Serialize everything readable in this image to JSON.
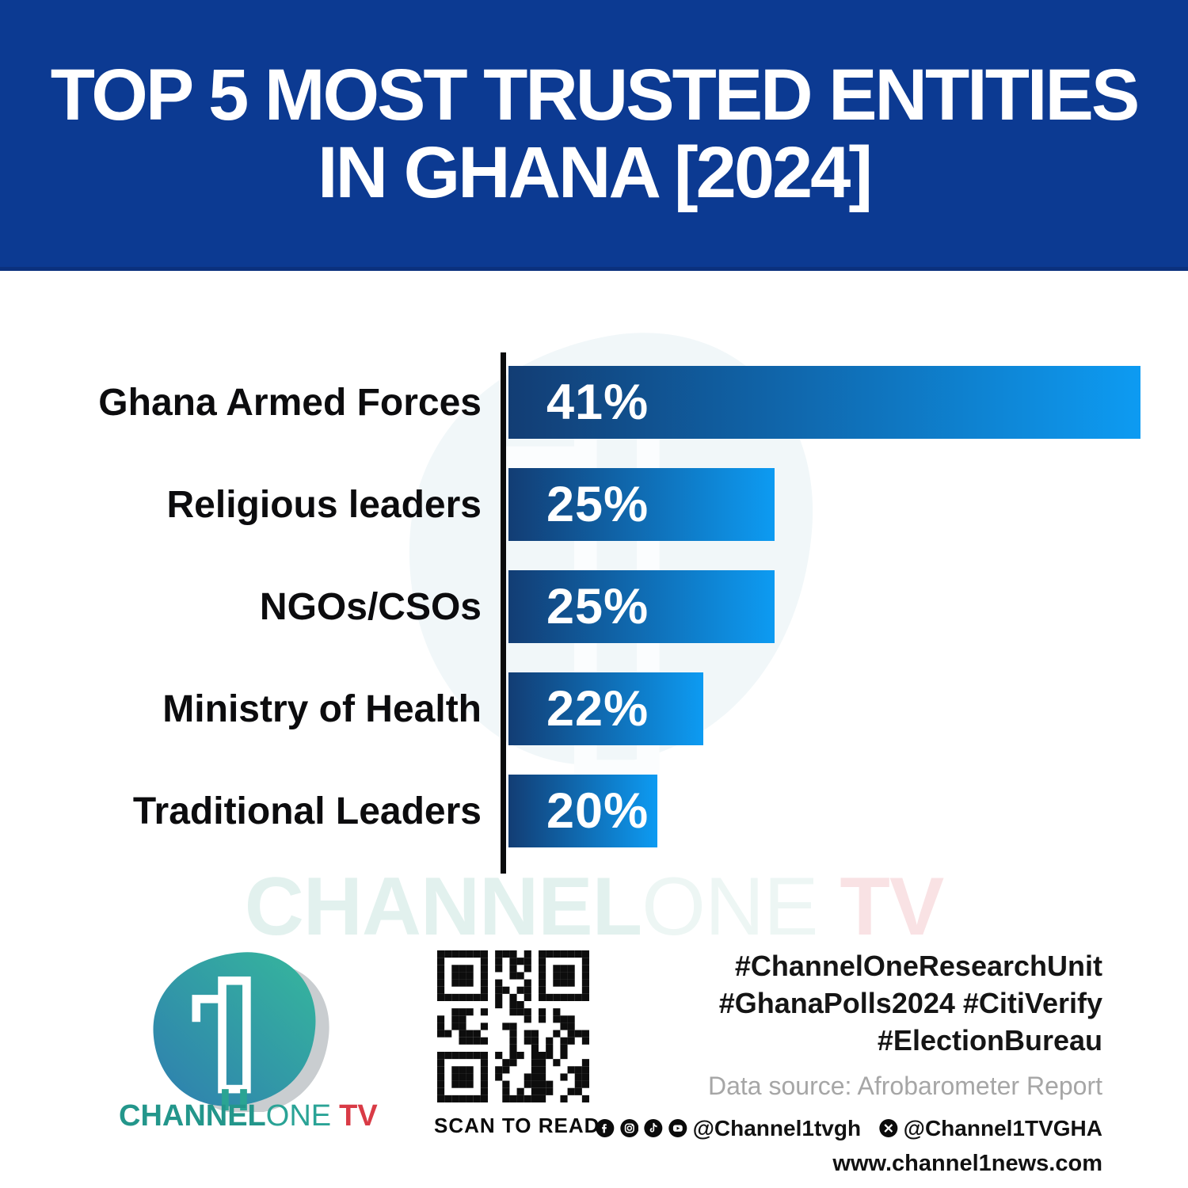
{
  "title": {
    "line1": "TOP 5 MOST TRUSTED ENTITIES",
    "line2": "IN GHANA [2024]"
  },
  "chart_data": {
    "type": "bar",
    "orientation": "horizontal",
    "title": "Top 5 Most Trusted Entities in Ghana [2024]",
    "categories": [
      "Ghana Armed Forces",
      "Religious leaders",
      "NGOs/CSOs",
      "Ministry of Health",
      "Traditional Leaders"
    ],
    "values": [
      41,
      25,
      25,
      22,
      20
    ],
    "value_labels": [
      "41%",
      "25%",
      "25%",
      "22%",
      "20%"
    ],
    "unit": "%",
    "xlabel": "",
    "ylabel": "",
    "grid": false,
    "legend": false,
    "value_label_position": "inside-left",
    "display_width_pct": [
      100,
      42.1,
      42.1,
      30.8,
      23.6
    ],
    "bar_gradient": [
      "#123d74",
      "#0d9bf2"
    ],
    "axis_color": "#0a0b0d"
  },
  "watermark": {
    "part1": "CHANNEL",
    "part2": "ONE",
    "part3": " TV"
  },
  "footer": {
    "logo": {
      "part1": "CHANNEL",
      "part2": "ONE",
      "part3": "TV"
    },
    "qr_caption": "SCAN TO READ",
    "hashtags": [
      "#ChannelOneResearchUnit",
      "#GhanaPolls2024 #CitiVerify",
      "#ElectionBureau"
    ],
    "data_source": "Data source: Afrobarometer Report",
    "social_handle_1": "@Channel1tvgh",
    "social_handle_2": "@Channel1TVGHA",
    "website": "www.channel1news.com"
  },
  "colors": {
    "banner_bg": "#0c3a92",
    "title_text": "#ffffff",
    "label_text": "#0c0c0e",
    "value_text": "#ffffff",
    "hashtag_text": "#151515",
    "data_source_text": "#a6a6a6",
    "logo_teal": "#23968b",
    "logo_red": "#d93b46"
  }
}
